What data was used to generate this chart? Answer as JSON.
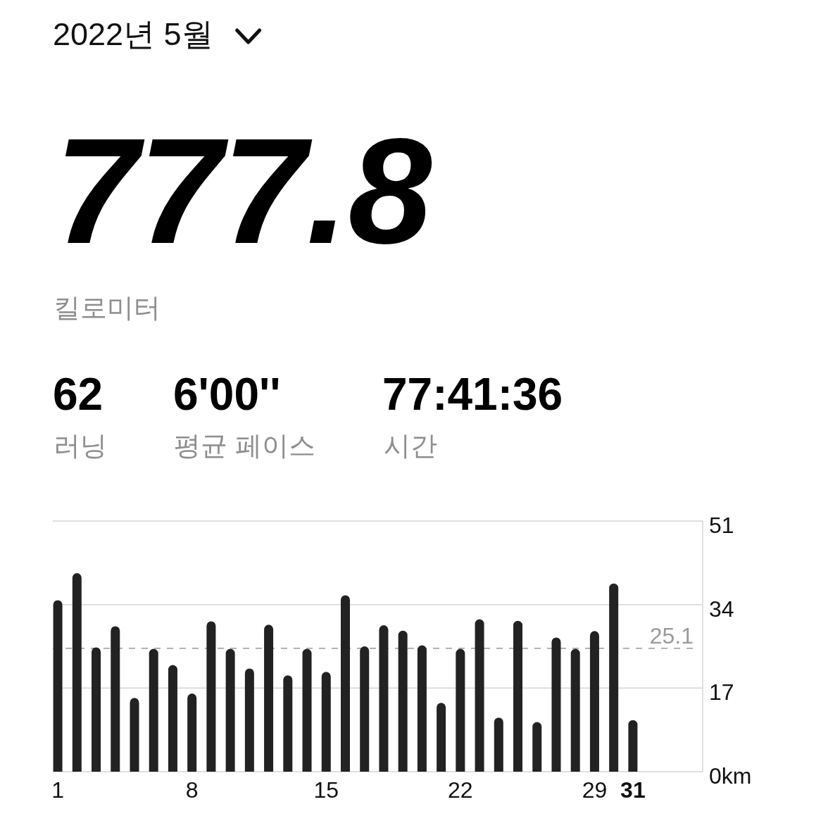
{
  "chart_data": {
    "type": "bar",
    "title": "2022년 5월",
    "annotations": [
      "777.8",
      "킬로미터",
      "62",
      "러닝",
      "6'00''",
      "평균 페이스",
      "77:41:36",
      "시간"
    ],
    "categories": [
      "1",
      null,
      null,
      null,
      null,
      null,
      null,
      "8",
      null,
      null,
      null,
      null,
      null,
      null,
      "15",
      null,
      null,
      null,
      null,
      null,
      null,
      "22",
      null,
      null,
      null,
      null,
      null,
      null,
      "29",
      null,
      "31"
    ],
    "values": [
      34.9,
      40.4,
      25.3,
      29.6,
      15.0,
      25.0,
      21.7,
      15.9,
      30.6,
      25.0,
      21.0,
      29.9,
      19.6,
      25.0,
      20.3,
      35.9,
      25.5,
      29.8,
      28.7,
      25.7,
      14.0,
      25.0,
      31.0,
      11.0,
      30.7,
      10.1,
      27.3,
      25.0,
      28.6,
      38.3,
      10.5
    ],
    "color": "#222222",
    "ylim": [
      0,
      51
    ],
    "yticks": [
      {
        "value": 0,
        "label": "0km"
      },
      17,
      34,
      51
    ],
    "grid": "y",
    "ref_lines": [
      {
        "axis": "y",
        "value": 25.1,
        "label": "25.1",
        "color": "#9a9a9a",
        "line_style": "dashed"
      }
    ]
  }
}
